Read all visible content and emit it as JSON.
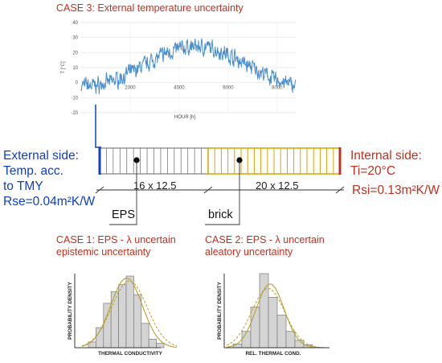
{
  "case3": {
    "title": "CASE 3: External temperature uncertainty"
  },
  "temp_chart": {
    "ylabel": "T [°C]",
    "xlabel": "HOUR [h]",
    "yticks": [
      "40",
      "30",
      "20",
      "10",
      "0",
      "-10",
      "-20"
    ],
    "xticks": [
      "2000",
      "4000",
      "6000",
      "8000"
    ]
  },
  "external": {
    "line1": "External side:",
    "line2": "Temp. acc.",
    "line3": "to TMY",
    "rse": "Rse=0.04m²K/W"
  },
  "internal": {
    "line1": "Internal side:",
    "line2": "Ti=20°C",
    "rsi": "Rsi=0.13m²K/W"
  },
  "wall": {
    "eps_dim": "16 x 12.5",
    "brick_dim": "20 x 12.5",
    "eps_label": "EPS",
    "brick_label": "brick"
  },
  "case1": {
    "line1": "CASE 1: EPS - λ uncertain",
    "line2": "epistemic uncertainty"
  },
  "case2": {
    "line1": "CASE 2: EPS - λ uncertain",
    "line2": "aleatory uncertainty"
  },
  "hist1": {
    "ylabel": "PROBABILITY DENSITY",
    "xlabel": "THERMAL CONDUCTIVITY"
  },
  "hist2": {
    "ylabel": "PROBABILITY DENSITY",
    "xlabel": "REL. THERMAL COND."
  },
  "colors": {
    "red": "#c0311f",
    "blue": "#1040c0",
    "series": "#4a90d0",
    "brick": "#d9a400",
    "fit": "#b8a030"
  },
  "chart_data": [
    {
      "type": "line",
      "xlim": [
        0,
        8760
      ],
      "ylim": [
        -20,
        40
      ],
      "grid": true
    },
    {
      "type": "bar",
      "values": [
        0.08,
        0.28,
        0.62,
        0.78,
        0.88,
        1.0,
        0.74,
        0.34,
        0.12,
        0.06
      ]
    },
    {
      "type": "bar",
      "values": [
        0.05,
        0.22,
        0.55,
        1.0,
        0.68,
        0.44,
        0.22,
        0.1,
        0.04
      ]
    }
  ]
}
